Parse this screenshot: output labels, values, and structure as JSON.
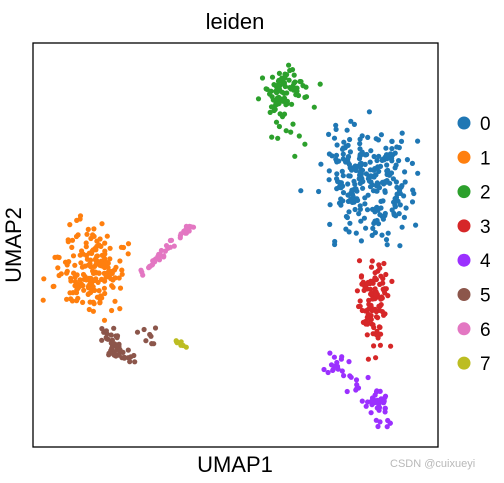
{
  "chart_data": {
    "type": "scatter",
    "title": "leiden",
    "xlabel": "UMAP1",
    "ylabel": "UMAP2",
    "xlim": [
      0,
      100
    ],
    "ylim": [
      0,
      100
    ],
    "ticks_visible": false,
    "grid": false,
    "legend": "right",
    "series": [
      {
        "name": "0",
        "color": "#1f77b4",
        "points": [
          [
            82,
            66,
            70
          ],
          [
            77,
            69,
            40
          ],
          [
            86,
            72,
            30
          ],
          [
            90,
            62,
            30
          ],
          [
            78,
            59,
            30
          ],
          [
            85,
            56,
            25
          ],
          [
            88,
            69,
            25
          ],
          [
            80,
            74,
            20
          ]
        ]
      },
      {
        "name": "1",
        "color": "#ff7f0e",
        "points": [
          [
            15,
            43,
            75
          ],
          [
            11,
            40,
            25
          ],
          [
            19,
            45,
            25
          ],
          [
            13,
            50,
            25
          ],
          [
            17,
            37,
            20
          ],
          [
            9,
            45,
            15
          ]
        ]
      },
      {
        "name": "2",
        "color": "#2ca02c",
        "points": [
          [
            62,
            89,
            55
          ],
          [
            60,
            86,
            20
          ],
          [
            65,
            88,
            15
          ],
          [
            62,
            79,
            6
          ],
          [
            66,
            73,
            3
          ]
        ]
      },
      {
        "name": "3",
        "color": "#d62728",
        "points": [
          [
            84,
            36,
            45
          ],
          [
            83,
            31,
            20
          ],
          [
            86,
            41,
            20
          ],
          [
            85,
            27,
            10
          ],
          [
            82,
            43,
            10
          ]
        ]
      },
      {
        "name": "4",
        "color": "#9b30ff",
        "points": [
          [
            85,
            11,
            35
          ],
          [
            75,
            21,
            15
          ],
          [
            80,
            16,
            10
          ],
          [
            87,
            8,
            8
          ]
        ]
      },
      {
        "name": "5",
        "color": "#8c564b",
        "points": [
          [
            20,
            24,
            30
          ],
          [
            18,
            27,
            15
          ],
          [
            23,
            22,
            10
          ],
          [
            28,
            28,
            8
          ]
        ]
      },
      {
        "name": "6",
        "color": "#e377c2",
        "points": [
          [
            36,
            52,
            40
          ]
        ]
      },
      {
        "name": "7",
        "color": "#bcbd22",
        "points": [
          [
            37,
            26,
            8
          ]
        ]
      }
    ]
  },
  "watermark": "CSDN @cuixueyi"
}
